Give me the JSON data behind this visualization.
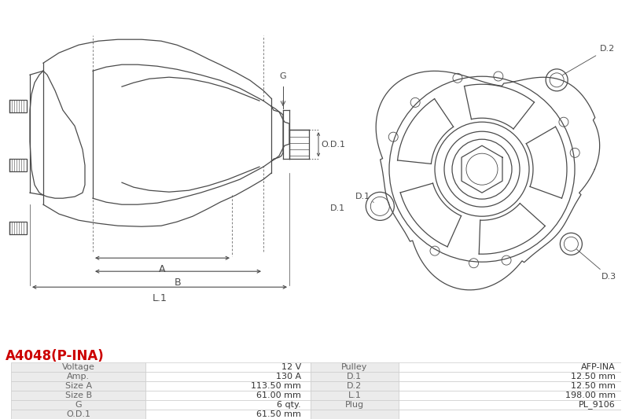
{
  "title": "A4048(P-INA)",
  "title_color": "#cc0000",
  "bg_color": "#ffffff",
  "table_rows": [
    [
      "Voltage",
      "12 V",
      "Pulley",
      "AFP-INA"
    ],
    [
      "Amp.",
      "130 A",
      "D.1",
      "12.50 mm"
    ],
    [
      "Size A",
      "113.50 mm",
      "D.2",
      "12.50 mm"
    ],
    [
      "Size B",
      "61.00 mm",
      "L.1",
      "198.00 mm"
    ],
    [
      "G",
      "6 qty.",
      "Plug",
      "PL_9106"
    ],
    [
      "O.D.1",
      "61.50 mm",
      "",
      ""
    ]
  ],
  "table_row_bg1": "#ebebeb",
  "table_row_bg2": "#ffffff",
  "table_border_color": "#cccccc",
  "label_color": "#666666",
  "value_color": "#333333",
  "dc": "#4a4a4a",
  "lw": 0.9
}
